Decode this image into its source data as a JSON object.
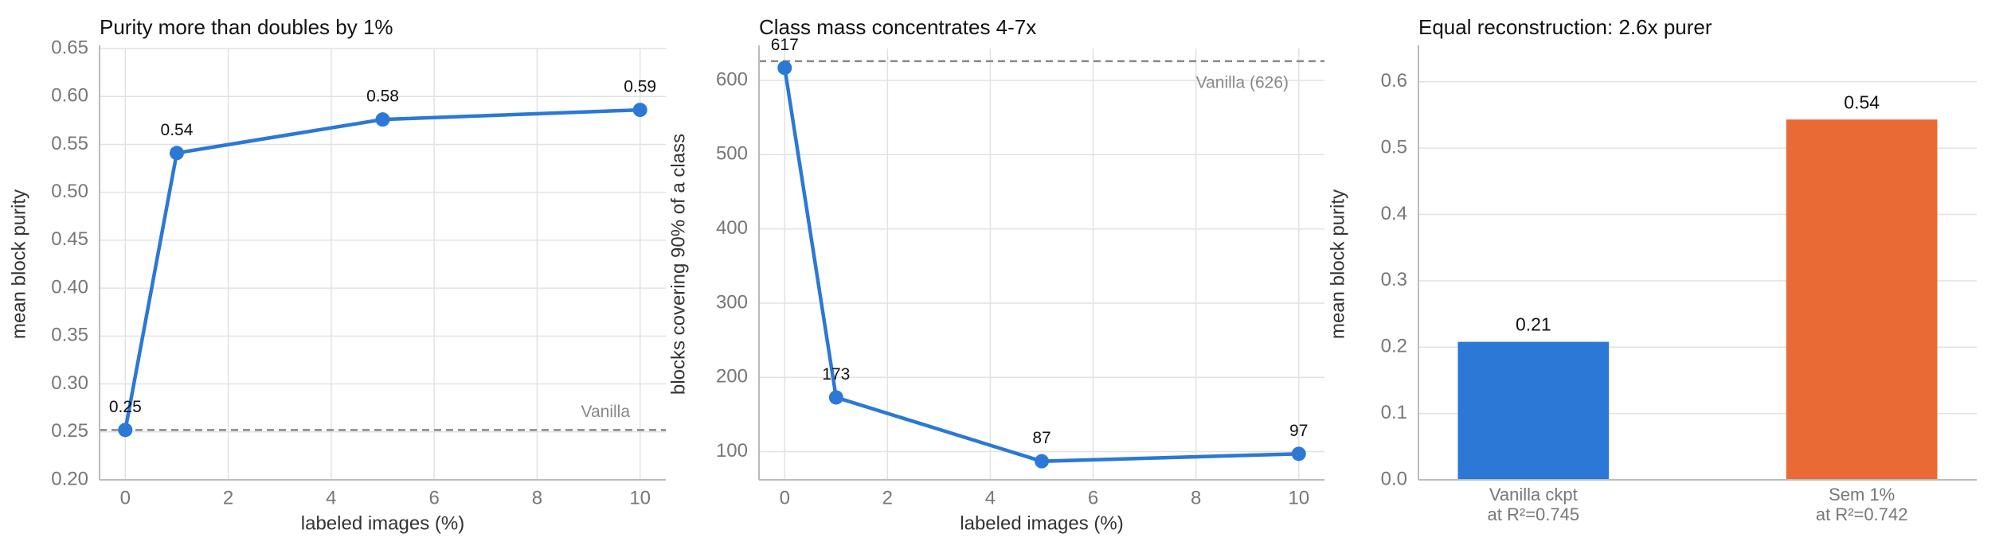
{
  "chart_data": [
    {
      "type": "line",
      "title": "Purity more than doubles by 1%",
      "x_label": "labeled images (%)",
      "y_label": "mean block purity",
      "x": [
        0,
        1,
        5,
        10
      ],
      "values": [
        0.252,
        0.541,
        0.576,
        0.586
      ],
      "value_labels": [
        "0.25",
        "0.54",
        "0.58",
        "0.59"
      ],
      "color": "#2b78d6",
      "xlim": [
        -0.5,
        10.5
      ],
      "xticks": [
        0,
        2,
        4,
        6,
        8,
        10
      ],
      "ylim": [
        0.2,
        0.65
      ],
      "yticks": [
        {
          "value": 0.2,
          "label": "0.20"
        },
        0.25,
        {
          "value": 0.3,
          "label": "0.30"
        },
        0.35,
        {
          "value": 0.4,
          "label": "0.40"
        },
        0.45,
        {
          "value": 0.5,
          "label": "0.50"
        },
        0.55,
        {
          "value": 0.6,
          "label": "0.60"
        },
        0.65
      ],
      "hlines": [
        {
          "value": 0.252,
          "label": "Vanilla"
        }
      ],
      "grid": true
    },
    {
      "type": "line",
      "title": "Class mass concentrates 4-7x",
      "x_label": "labeled images (%)",
      "y_label": "blocks covering 90% of a class",
      "x": [
        0,
        1,
        5,
        10
      ],
      "values": [
        617,
        173,
        87,
        97
      ],
      "color": "#2b78d6",
      "xlim": [
        -0.5,
        10.5
      ],
      "xticks": [
        0,
        2,
        4,
        6,
        8,
        10
      ],
      "ylim": [
        62,
        643
      ],
      "yticks": [
        100,
        200,
        300,
        400,
        500,
        600
      ],
      "hlines": [
        {
          "value": 626,
          "label": "Vanilla (626)"
        }
      ],
      "grid": true
    },
    {
      "type": "bar",
      "title": "Equal reconstruction: 2.6x purer",
      "y_label": "mean block purity",
      "categories": [
        [
          "Vanilla ckpt",
          "at R²=0.745"
        ],
        [
          "Sem 1%",
          "at R²=0.742"
        ]
      ],
      "values": [
        0.208,
        0.543
      ],
      "value_labels": [
        "0.21",
        "0.54"
      ],
      "colors": [
        "#2b78d6",
        "#e96a35"
      ],
      "ylim": [
        0,
        0.65
      ],
      "yticks": [
        {
          "value": 0,
          "label": "0.0"
        },
        0.1,
        0.2,
        0.3,
        0.4,
        0.5,
        0.6
      ],
      "grid": true
    }
  ]
}
